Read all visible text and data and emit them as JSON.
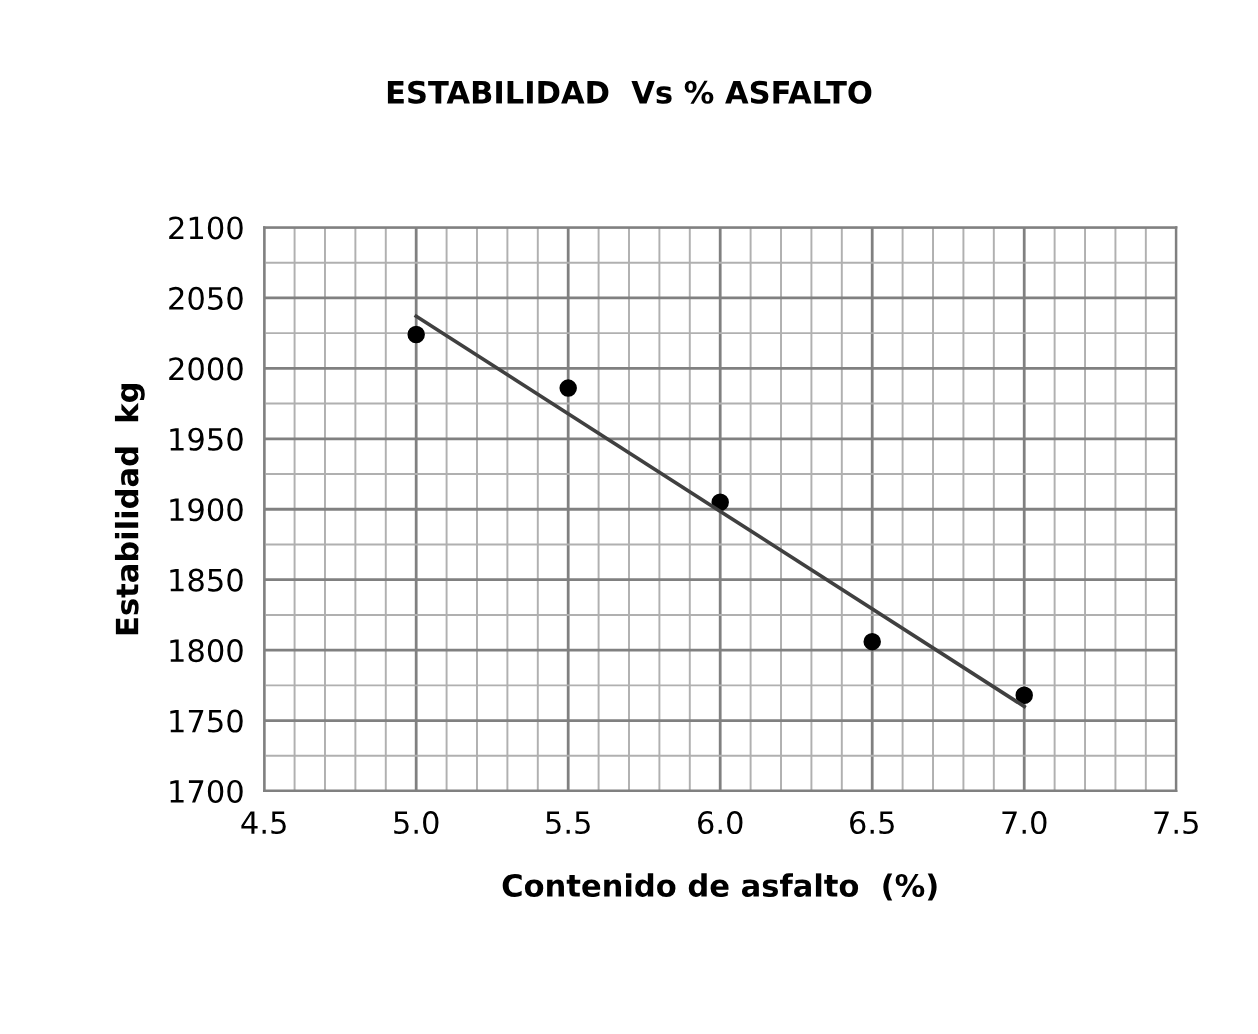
{
  "chart_data": {
    "type": "scatter",
    "title": "ESTABILIDAD  Vs % ASFALTO",
    "xlabel": "Contenido de asfalto  (%)",
    "ylabel": "Estabilidad  kg",
    "series": [
      {
        "color": "#000000",
        "marker": "circle",
        "x": [
          5.0,
          5.5,
          6.0,
          6.5,
          7.0
        ],
        "values": [
          2024,
          1986,
          1905,
          1806,
          1768
        ]
      },
      {
        "type": "line",
        "color": "#404040",
        "marker": "none",
        "x": [
          5.0,
          7.0
        ],
        "values": [
          2037,
          1760
        ]
      }
    ],
    "xlim": [
      4.5,
      7.5
    ],
    "xticks": [
      {
        "value": 4.5,
        "label": "4.5"
      },
      {
        "value": 5.0,
        "label": "5.0"
      },
      {
        "value": 5.5,
        "label": "5.5"
      },
      {
        "value": 6.0,
        "label": "6.0"
      },
      {
        "value": 6.5,
        "label": "6.5"
      },
      {
        "value": 7.0,
        "label": "7.0"
      },
      {
        "value": 7.5,
        "label": "7.5"
      }
    ],
    "ylim": [
      1700,
      2100
    ],
    "yticks": [
      1700,
      1750,
      1800,
      1850,
      1900,
      1950,
      2000,
      2050,
      2100
    ],
    "grid": true
  }
}
